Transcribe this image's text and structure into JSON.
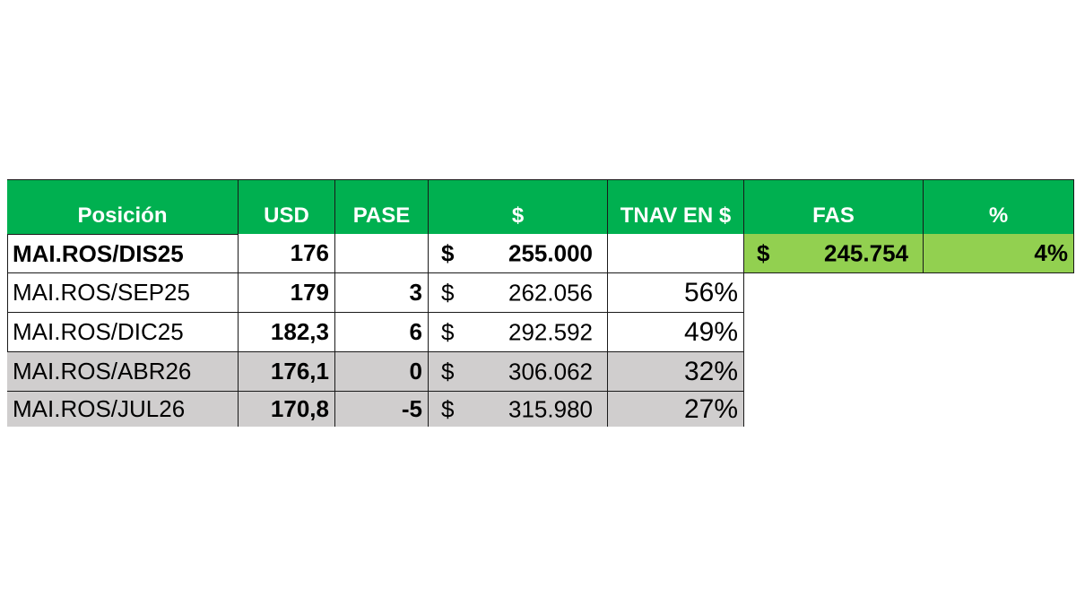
{
  "headers": {
    "posicion": "Posición",
    "usd": "USD",
    "pase": "PASE",
    "pesos": "$",
    "tnav": "TNAV EN $",
    "fas": "FAS",
    "pct": "%"
  },
  "rows": [
    {
      "posicion": "MAI.ROS/DIS25",
      "usd": "176",
      "pase": "",
      "currency": "$",
      "pesos": "255.000",
      "tnav": "",
      "fas_currency": "$",
      "fas": "245.754",
      "pct": "4%"
    },
    {
      "posicion": "MAI.ROS/SEP25",
      "usd": "179",
      "pase": "3",
      "currency": "$",
      "pesos": "262.056",
      "tnav": "56%"
    },
    {
      "posicion": "MAI.ROS/DIC25",
      "usd": "182,3",
      "pase": "6",
      "currency": "$",
      "pesos": "292.592",
      "tnav": "49%"
    },
    {
      "posicion": "MAI.ROS/ABR26",
      "usd": "176,1",
      "pase": "0",
      "currency": "$",
      "pesos": "306.062",
      "tnav": "32%"
    },
    {
      "posicion": "MAI.ROS/JUL26",
      "usd": "170,8",
      "pase": "-5",
      "currency": "$",
      "pesos": "315.980",
      "tnav": "27%"
    }
  ],
  "colors": {
    "header_green": "#00b050",
    "fas_green": "#92d050",
    "grey_row": "#d0cece"
  }
}
